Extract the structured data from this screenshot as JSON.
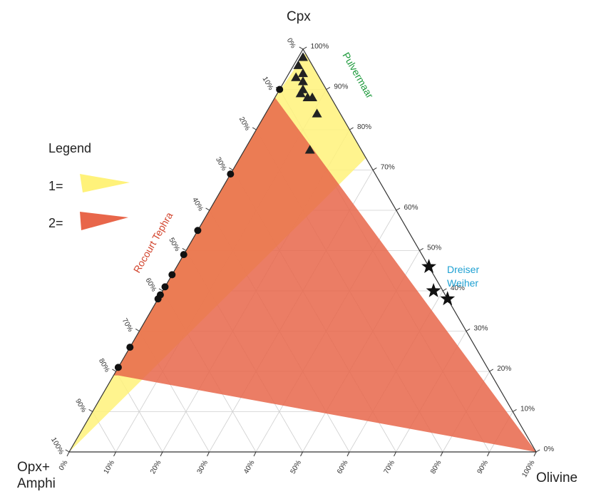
{
  "chart_data": {
    "type": "ternary",
    "vertices": {
      "top": "Cpx",
      "bottom_left_line1": "Opx+",
      "bottom_left_line2": "Amphi",
      "bottom_right": "Olivine"
    },
    "axes": {
      "left_ticks": [
        "0%",
        "10%",
        "20%",
        "30%",
        "40%",
        "50%",
        "60%",
        "70%",
        "80%",
        "90%",
        "100%"
      ],
      "right_ticks": [
        "100%",
        "90%",
        "80%",
        "70%",
        "60%",
        "50%",
        "40%",
        "30%",
        "20%",
        "10%",
        "0%"
      ],
      "bottom_ticks": [
        "0%",
        "10%",
        "20%",
        "30%",
        "40%",
        "50%",
        "60%",
        "70%",
        "80%",
        "90%",
        "100%"
      ]
    },
    "legend": {
      "title": "Legend",
      "items": [
        {
          "label": "1=",
          "color": "#fff27a"
        },
        {
          "label": "2=",
          "color": "#e8664a"
        }
      ]
    },
    "annotations": [
      {
        "text": "Pulvermaar",
        "color": "#1e9a3c"
      },
      {
        "text": "Rocourt Tephra",
        "color": "#d2452e"
      },
      {
        "text": "Dreiser",
        "color": "#1ea0d2"
      },
      {
        "text": "Weiher",
        "color": "#1ea0d2"
      }
    ],
    "regions": [
      {
        "name": "1",
        "color": "#fff27a",
        "points": [
          {
            "cpx": 99,
            "olivine": 1
          },
          {
            "cpx": 73,
            "olivine": 27
          },
          {
            "cpx": 0,
            "olivine": 0
          },
          {
            "cpx": 88,
            "olivine": 0
          }
        ]
      },
      {
        "name": "2",
        "color": "#e8664a",
        "points": [
          {
            "cpx": 88,
            "olivine": 0
          },
          {
            "cpx": 19,
            "olivine": 0
          },
          {
            "cpx": 19,
            "olivine": 1
          },
          {
            "cpx": 0,
            "olivine": 100
          }
        ]
      }
    ],
    "series": [
      {
        "name": "Pulvermaar",
        "marker": "triangle",
        "color": "#222222",
        "points": [
          {
            "cpx": 98,
            "olivine": 1
          },
          {
            "cpx": 96,
            "olivine": 1
          },
          {
            "cpx": 94,
            "olivine": 3
          },
          {
            "cpx": 93,
            "olivine": 2
          },
          {
            "cpx": 92,
            "olivine": 4
          },
          {
            "cpx": 90,
            "olivine": 5
          },
          {
            "cpx": 89,
            "olivine": 5
          },
          {
            "cpx": 88,
            "olivine": 7
          },
          {
            "cpx": 88,
            "olivine": 8
          },
          {
            "cpx": 84,
            "olivine": 11
          },
          {
            "cpx": 75,
            "olivine": 14
          }
        ]
      },
      {
        "name": "Rocourt Tephra",
        "marker": "circle",
        "color": "#111111",
        "points": [
          {
            "cpx": 90,
            "olivine": 0
          },
          {
            "cpx": 69,
            "olivine": 0
          },
          {
            "cpx": 55,
            "olivine": 0
          },
          {
            "cpx": 49,
            "olivine": 0
          },
          {
            "cpx": 44,
            "olivine": 0
          },
          {
            "cpx": 41,
            "olivine": 0
          },
          {
            "cpx": 39,
            "olivine": 0
          },
          {
            "cpx": 38,
            "olivine": 0
          },
          {
            "cpx": 26,
            "olivine": 0
          },
          {
            "cpx": 21,
            "olivine": 0
          }
        ]
      },
      {
        "name": "Dreiser Weiher",
        "marker": "star",
        "color": "#111111",
        "points": [
          {
            "cpx": 46,
            "olivine": 54
          },
          {
            "cpx": 40,
            "olivine": 58
          },
          {
            "cpx": 38,
            "olivine": 62
          }
        ]
      }
    ]
  }
}
